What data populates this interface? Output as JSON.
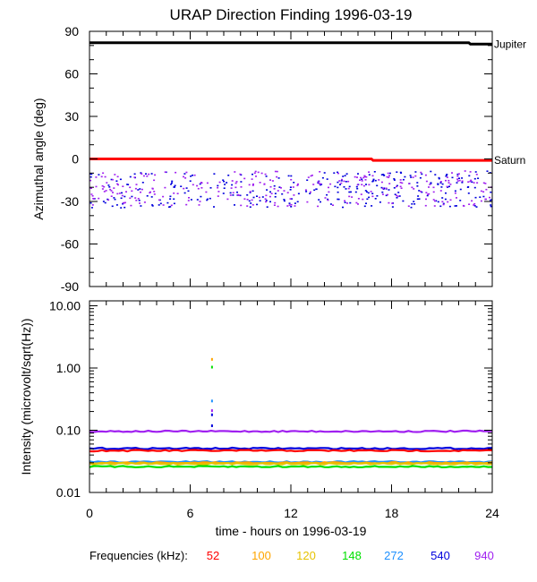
{
  "title": "URAP Direction Finding  1996-03-19",
  "chart_data": [
    {
      "type": "scatter",
      "panel": "azimuth",
      "ylabel": "Azimuthal angle (deg)",
      "ylim": [
        -90,
        90
      ],
      "xlim": [
        0,
        24
      ],
      "yticks": [
        90,
        60,
        30,
        0,
        -30,
        -60,
        -90
      ],
      "ytick_labels": [
        "90",
        "60",
        "30",
        "0",
        "-30",
        "-60",
        "-90"
      ],
      "reference_lines": [
        {
          "name": "Jupiter",
          "color": "#000000",
          "segments": [
            [
              0,
              82
            ],
            [
              22.6,
              82
            ],
            [
              22.7,
              81
            ],
            [
              24,
              81
            ]
          ]
        },
        {
          "name": "Saturn",
          "color": "#ff0000",
          "segments": [
            [
              0,
              0
            ],
            [
              16.8,
              0
            ],
            [
              16.9,
              -1
            ],
            [
              24,
              -1
            ]
          ]
        }
      ],
      "scatter_series": [
        {
          "freq": "540",
          "color": "#0000dd",
          "x_range": [
            0,
            24
          ],
          "y_range": [
            -34,
            -8
          ]
        },
        {
          "freq": "940",
          "color": "#a020f0",
          "x_range": [
            0,
            24
          ],
          "y_range": [
            -33,
            -8
          ]
        }
      ]
    },
    {
      "type": "line",
      "panel": "intensity",
      "ylabel": "Intensity (microvolt/sqrt(Hz))",
      "yscale": "log",
      "ylim": [
        0.01,
        12
      ],
      "xlim": [
        0,
        24
      ],
      "xlabel": "time - hours on 1996-03-19",
      "xticks": [
        0,
        6,
        12,
        18,
        24
      ],
      "xtick_labels": [
        "0",
        "6",
        "12",
        "18",
        "24"
      ],
      "yticks": [
        10,
        1,
        0.1,
        0.01
      ],
      "ytick_labels": [
        "10.00",
        "1.00",
        "0.10",
        "0.01"
      ],
      "series": [
        {
          "name": "940",
          "color": "#a020f0",
          "value": 0.096
        },
        {
          "name": "540",
          "color": "#0000dd",
          "value": 0.051
        },
        {
          "name": "52",
          "color": "#ff0000",
          "value": 0.047
        },
        {
          "name": "272",
          "color": "#1e90ff",
          "value": 0.031
        },
        {
          "name": "100",
          "color": "#ffa500",
          "value": 0.03
        },
        {
          "name": "120",
          "color": "#e6c200",
          "value": 0.029
        },
        {
          "name": "148",
          "color": "#00e000",
          "value": 0.026
        }
      ],
      "spikes": [
        {
          "x": 7.3,
          "y": 1.4,
          "color": "#ffa500"
        },
        {
          "x": 7.3,
          "y": 1.05,
          "color": "#00e000"
        },
        {
          "x": 7.3,
          "y": 0.3,
          "color": "#1e90ff"
        },
        {
          "x": 7.3,
          "y": 0.21,
          "color": "#a020f0"
        },
        {
          "x": 7.3,
          "y": 0.18,
          "color": "#0000dd"
        },
        {
          "x": 7.3,
          "y": 0.12,
          "color": "#0000dd"
        }
      ]
    }
  ],
  "legend": {
    "label": "Frequencies (kHz):",
    "items": [
      {
        "text": "52",
        "color": "#ff0000"
      },
      {
        "text": "100",
        "color": "#ffa500"
      },
      {
        "text": "120",
        "color": "#e6c200"
      },
      {
        "text": "148",
        "color": "#00e000"
      },
      {
        "text": "272",
        "color": "#1e90ff"
      },
      {
        "text": "540",
        "color": "#0000dd"
      },
      {
        "text": "940",
        "color": "#a020f0"
      }
    ]
  }
}
